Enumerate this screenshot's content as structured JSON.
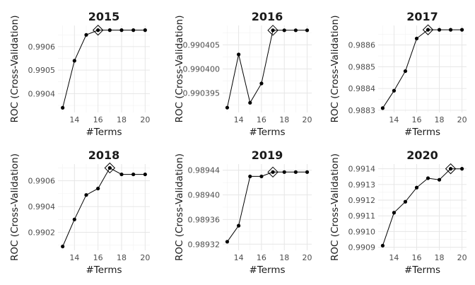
{
  "chart_data": [
    {
      "type": "line",
      "title": "2015",
      "xlabel": "#Terms",
      "ylabel": "ROC (Cross-Validation)",
      "x": [
        13,
        14,
        15,
        16,
        17,
        18,
        19,
        20
      ],
      "values": [
        0.99034,
        0.99054,
        0.99065,
        0.99067,
        0.99067,
        0.99067,
        0.99067,
        0.99067
      ],
      "best_x": 16,
      "xticks": [
        14,
        16,
        18,
        20
      ],
      "xtick_labels": [
        "14",
        "16",
        "18",
        "20"
      ],
      "yticks": [
        0.9904,
        0.9905,
        0.9906
      ],
      "ytick_labels": [
        "0.9904",
        "0.9905",
        "0.9906"
      ],
      "xlim": [
        12.6,
        20.4
      ],
      "ylim": [
        0.99032,
        0.99069
      ],
      "grid": true
    },
    {
      "type": "line",
      "title": "2016",
      "xlabel": "#Terms",
      "ylabel": "ROC (Cross-Validation)",
      "x": [
        13,
        14,
        15,
        16,
        17,
        18,
        19,
        20
      ],
      "values": [
        0.990392,
        0.990403,
        0.990393,
        0.990397,
        0.990408,
        0.990408,
        0.990408,
        0.990408
      ],
      "best_x": 17,
      "xticks": [
        14,
        16,
        18,
        20
      ],
      "xtick_labels": [
        "14",
        "16",
        "18",
        "20"
      ],
      "yticks": [
        0.990395,
        0.9904,
        0.990405
      ],
      "ytick_labels": [
        "0.990395",
        "0.990400",
        "0.990405"
      ],
      "xlim": [
        12.6,
        20.4
      ],
      "ylim": [
        0.990391,
        0.990409
      ],
      "grid": true
    },
    {
      "type": "line",
      "title": "2017",
      "xlabel": "#Terms",
      "ylabel": "ROC (Cross-Validation)",
      "x": [
        13,
        14,
        15,
        16,
        17,
        18,
        19,
        20
      ],
      "values": [
        0.98831,
        0.98839,
        0.98848,
        0.98863,
        0.98867,
        0.98867,
        0.98867,
        0.98867
      ],
      "best_x": 17,
      "xticks": [
        14,
        16,
        18,
        20
      ],
      "xtick_labels": [
        "14",
        "16",
        "18",
        "20"
      ],
      "yticks": [
        0.9883,
        0.9884,
        0.9885,
        0.9886
      ],
      "ytick_labels": [
        "0.9883",
        "0.9884",
        "0.9885",
        "0.9886"
      ],
      "xlim": [
        12.6,
        20.4
      ],
      "ylim": [
        0.98829,
        0.98869
      ],
      "grid": true
    },
    {
      "type": "line",
      "title": "2018",
      "xlabel": "#Terms",
      "ylabel": "ROC (Cross-Validation)",
      "x": [
        13,
        14,
        15,
        16,
        17,
        18,
        19,
        20
      ],
      "values": [
        0.99009,
        0.9903,
        0.99049,
        0.99054,
        0.9907,
        0.99065,
        0.99065,
        0.99065
      ],
      "best_x": 17,
      "xticks": [
        14,
        16,
        18,
        20
      ],
      "xtick_labels": [
        "14",
        "16",
        "18",
        "20"
      ],
      "yticks": [
        0.9902,
        0.9904,
        0.9906
      ],
      "ytick_labels": [
        "0.9902",
        "0.9904",
        "0.9906"
      ],
      "xlim": [
        12.6,
        20.4
      ],
      "ylim": [
        0.99006,
        0.99073
      ],
      "grid": true
    },
    {
      "type": "line",
      "title": "2019",
      "xlabel": "#Terms",
      "ylabel": "ROC (Cross-Validation)",
      "x": [
        13,
        14,
        15,
        16,
        17,
        18,
        19,
        20
      ],
      "values": [
        0.989324,
        0.98935,
        0.98943,
        0.98943,
        0.989437,
        0.989437,
        0.989437,
        0.989437
      ],
      "best_x": 17,
      "xticks": [
        14,
        16,
        18,
        20
      ],
      "xtick_labels": [
        "14",
        "16",
        "18",
        "20"
      ],
      "yticks": [
        0.98932,
        0.98936,
        0.9894,
        0.98944
      ],
      "ytick_labels": [
        "0.98932",
        "0.98936",
        "0.98940",
        "0.98944"
      ],
      "xlim": [
        12.6,
        20.4
      ],
      "ylim": [
        0.98931,
        0.98945
      ],
      "grid": true
    },
    {
      "type": "line",
      "title": "2020",
      "xlabel": "#Terms",
      "ylabel": "ROC (Cross-Validation)",
      "x": [
        13,
        14,
        15,
        16,
        17,
        18,
        19,
        20
      ],
      "values": [
        0.99091,
        0.99112,
        0.99119,
        0.99128,
        0.99134,
        0.99133,
        0.9914,
        0.9914
      ],
      "best_x": 19,
      "xticks": [
        14,
        16,
        18,
        20
      ],
      "xtick_labels": [
        "14",
        "16",
        "18",
        "20"
      ],
      "yticks": [
        0.9909,
        0.991,
        0.9911,
        0.9912,
        0.9913,
        0.9914
      ],
      "ytick_labels": [
        "0.9909",
        "0.9910",
        "0.9911",
        "0.9912",
        "0.9913",
        "0.9914"
      ],
      "xlim": [
        12.6,
        20.4
      ],
      "ylim": [
        0.99088,
        0.99143
      ],
      "grid": true
    }
  ]
}
